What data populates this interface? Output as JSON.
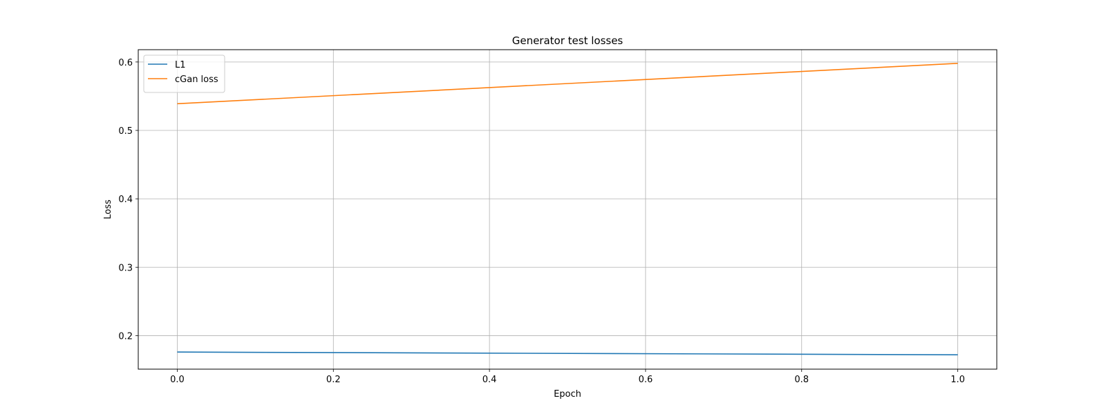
{
  "chart_data": {
    "type": "line",
    "title": "Generator test losses",
    "xlabel": "Epoch",
    "ylabel": "Loss",
    "xlim": [
      -0.05,
      1.05
    ],
    "ylim": [
      0.151,
      0.618
    ],
    "xticks": [
      0.0,
      0.2,
      0.4,
      0.6,
      0.8,
      1.0
    ],
    "xtick_labels": [
      "0.0",
      "0.2",
      "0.4",
      "0.6",
      "0.8",
      "1.0"
    ],
    "yticks": [
      0.2,
      0.3,
      0.4,
      0.5,
      0.6
    ],
    "ytick_labels": [
      "0.2",
      "0.3",
      "0.4",
      "0.5",
      "0.6"
    ],
    "grid": true,
    "legend_position": "top-left",
    "series": [
      {
        "name": "L1",
        "color": "#1f77b4",
        "x": [
          0.0,
          1.0
        ],
        "y": [
          0.176,
          0.172
        ]
      },
      {
        "name": "cGan loss",
        "color": "#ff7f0e",
        "x": [
          0.0,
          1.0
        ],
        "y": [
          0.539,
          0.598
        ]
      }
    ]
  }
}
